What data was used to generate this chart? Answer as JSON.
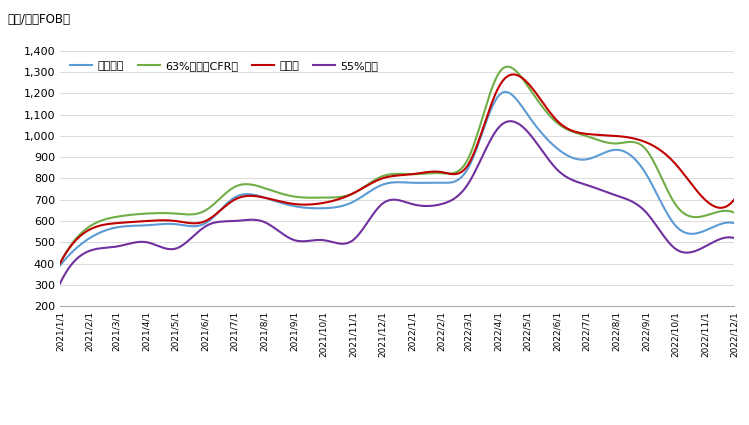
{
  "ylabel": "美元/吨（FOB）",
  "ylim": [
    200,
    1400
  ],
  "yticks": [
    200,
    300,
    400,
    500,
    600,
    700,
    800,
    900,
    1000,
    1100,
    1200,
    1300,
    1400
  ],
  "background_color": "#ffffff",
  "legend_labels": [
    "波罗的海",
    "63%巴西（CFR）",
    "摩洛哥",
    "55%中国"
  ],
  "line_colors": [
    "#5b9bd5",
    "#70ad47",
    "#c00000",
    "#7030a0"
  ],
  "line_width": 1.5,
  "dates": [
    "2021/1/1",
    "2021/2/1",
    "2021/3/1",
    "2021/4/1",
    "2021/5/1",
    "2021/6/1",
    "2021/7/1",
    "2021/8/1",
    "2021/9/1",
    "2021/10/1",
    "2021/11/1",
    "2021/12/1",
    "2022/1/1",
    "2022/2/1",
    "2022/3/1",
    "2022/4/1",
    "2022/5/1",
    "2022/6/1",
    "2022/7/1",
    "2022/8/1",
    "2022/9/1",
    "2022/10/1",
    "2022/11/1",
    "2022/12/1"
  ],
  "baltic": [
    390,
    520,
    570,
    580,
    585,
    590,
    710,
    710,
    670,
    660,
    690,
    770,
    780,
    780,
    855,
    1190,
    1100,
    940,
    890,
    935,
    820,
    580,
    555,
    590
  ],
  "brazil63": [
    400,
    575,
    620,
    635,
    635,
    650,
    760,
    755,
    715,
    710,
    730,
    810,
    820,
    825,
    900,
    1295,
    1235,
    1060,
    1000,
    965,
    935,
    680,
    625,
    640
  ],
  "morocco": [
    400,
    560,
    590,
    600,
    600,
    600,
    700,
    710,
    680,
    685,
    730,
    800,
    820,
    830,
    870,
    1230,
    1250,
    1070,
    1010,
    1000,
    970,
    870,
    700,
    700
  ],
  "china55": [
    305,
    460,
    480,
    500,
    470,
    575,
    600,
    595,
    510,
    510,
    510,
    680,
    680,
    680,
    780,
    1040,
    1020,
    840,
    770,
    720,
    640,
    470,
    480,
    520
  ]
}
